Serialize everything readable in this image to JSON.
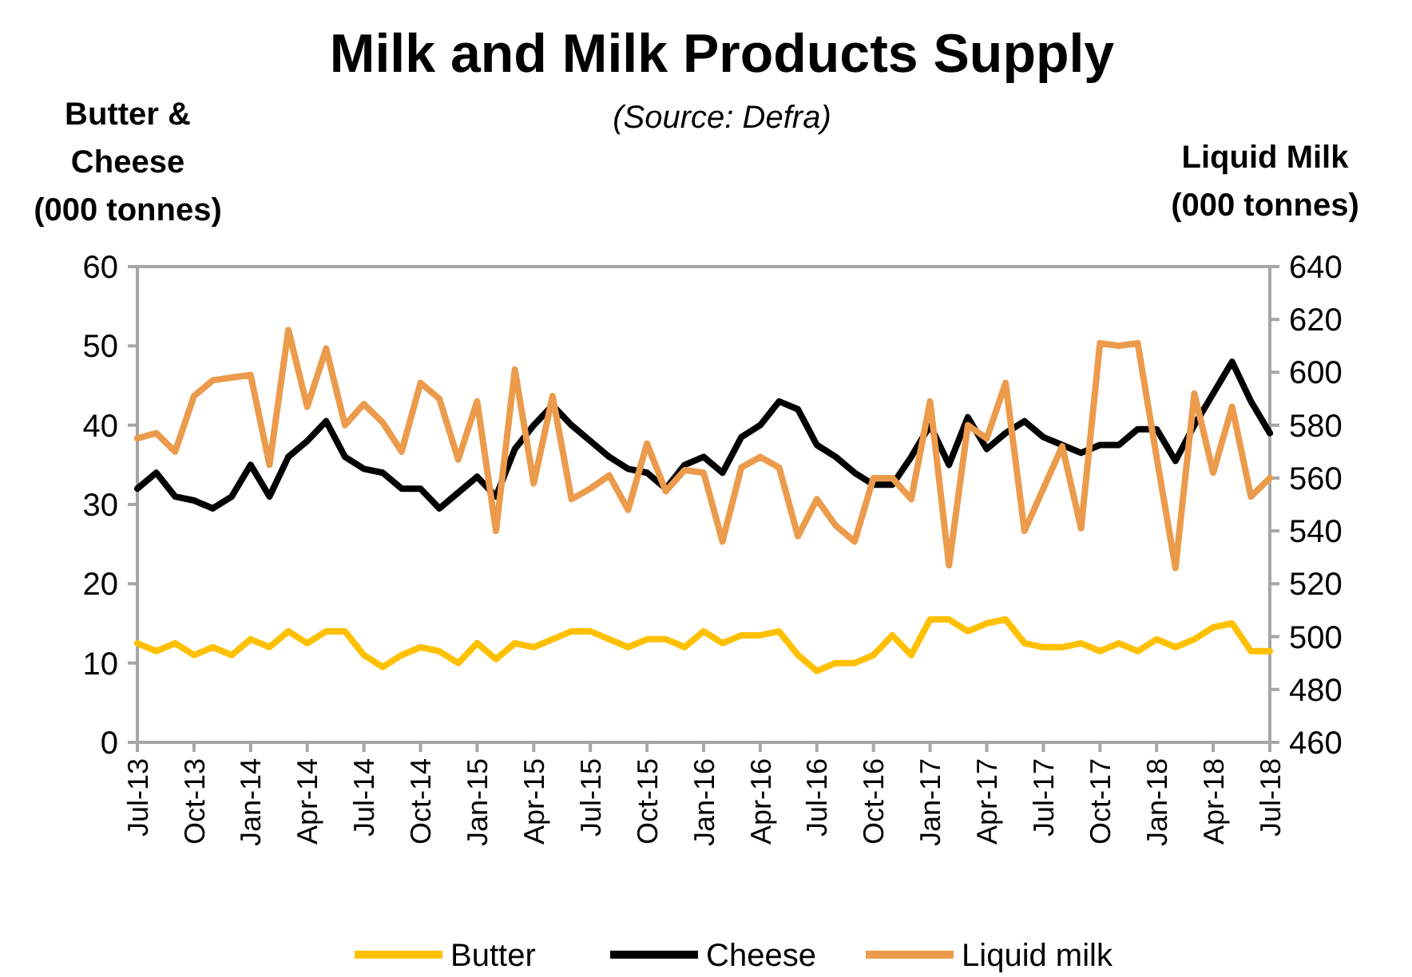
{
  "chart_data": {
    "type": "line",
    "title": "Milk and Milk Products Supply",
    "subtitle": "(Source: Defra)",
    "ylabel": "Butter & Cheese (000 tonnes)",
    "y2label": "Liquid Milk (000 tonnes)",
    "categories": [
      "Jul-13",
      null,
      null,
      "Oct-13",
      null,
      null,
      "Jan-14",
      null,
      null,
      "Apr-14",
      null,
      null,
      "Jul-14",
      null,
      null,
      "Oct-14",
      null,
      null,
      "Jan-15",
      null,
      null,
      "Apr-15",
      null,
      null,
      "Jul-15",
      null,
      null,
      "Oct-15",
      null,
      null,
      "Jan-16",
      null,
      null,
      "Apr-16",
      null,
      null,
      "Jul-16",
      null,
      null,
      "Oct-16",
      null,
      null,
      "Jan-17",
      null,
      null,
      "Apr-17",
      null,
      null,
      "Jul-17",
      null,
      null,
      "Oct-17",
      null,
      null,
      "Jan-18",
      null,
      null,
      "Apr-18",
      null,
      null,
      "Jul-18"
    ],
    "ylim": [
      0,
      60
    ],
    "yticks": [
      0,
      10,
      20,
      30,
      40,
      50,
      60
    ],
    "y2lim": [
      460,
      640
    ],
    "y2ticks": [
      460,
      480,
      500,
      520,
      540,
      560,
      580,
      600,
      620,
      640
    ],
    "grid": false,
    "legend": "bottom",
    "marker": "none",
    "line_style": "solid",
    "series": [
      {
        "name": "Butter",
        "color": "#ffc000",
        "values": [
          12.5,
          11.5,
          12.5,
          11,
          12,
          11,
          13,
          12,
          14,
          12.5,
          14,
          14,
          11,
          9.5,
          11,
          12,
          11.5,
          10,
          12.5,
          10.5,
          12.5,
          12,
          13,
          14,
          14,
          13,
          12,
          13,
          13,
          12,
          14,
          12.5,
          13.5,
          13.5,
          14,
          11,
          9,
          10,
          10,
          11,
          13.5,
          11,
          15.5,
          15.5,
          14,
          15,
          15.5,
          12.5,
          12,
          12,
          12.5,
          11.5,
          12.5,
          11.5,
          13,
          12,
          13,
          14.5,
          15,
          11.5,
          11.5
        ]
      },
      {
        "name": "Cheese",
        "color": "#000000",
        "values": [
          32,
          34,
          31,
          30.5,
          29.5,
          31,
          35,
          31,
          36,
          38,
          40.5,
          36,
          34.5,
          34,
          32,
          32,
          29.5,
          31.5,
          33.5,
          31,
          37,
          40,
          42.5,
          40,
          38,
          36,
          34.5,
          34,
          32,
          35,
          36,
          34,
          38.5,
          40,
          43,
          42,
          37.5,
          36,
          34,
          32.5,
          32.5,
          36,
          40,
          35,
          41,
          37,
          39,
          40.5,
          38.5,
          37.5,
          36.5,
          37.5,
          37.5,
          39.5,
          39.5,
          35.5,
          40,
          44,
          48,
          43,
          39
        ]
      },
      {
        "name": "Liquid milk",
        "color": "#eb9b4b",
        "axis": "y2",
        "values": [
          575,
          577,
          570,
          591,
          597,
          598,
          599,
          565,
          616,
          587,
          609,
          580,
          588,
          581,
          570,
          596,
          590,
          567,
          589,
          540,
          601,
          558,
          591,
          552,
          556,
          561,
          548,
          573,
          555,
          563,
          562,
          536,
          564,
          568,
          564,
          538,
          552,
          542,
          536,
          560,
          560,
          552,
          589,
          527,
          580,
          575,
          596,
          540,
          556,
          572,
          541,
          611,
          610,
          611,
          568,
          526,
          592,
          562,
          587,
          553,
          560
        ]
      }
    ]
  }
}
